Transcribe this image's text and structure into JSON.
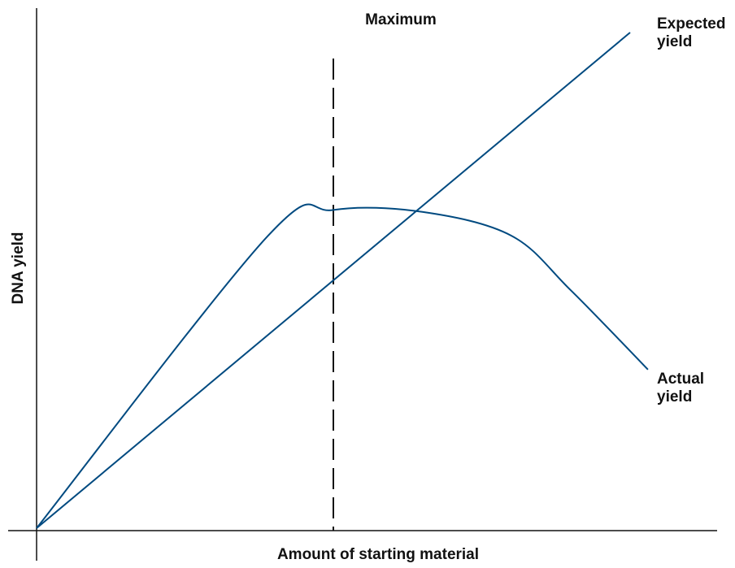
{
  "chart_data": {
    "type": "line",
    "title": "",
    "xlabel": "Amount of starting material",
    "ylabel": "DNA yield",
    "grid": false,
    "xlim": [
      0,
      10
    ],
    "ylim": [
      0,
      10
    ],
    "series": [
      {
        "name": "Expected\nyield",
        "color": "#004a80",
        "x": [
          0,
          10
        ],
        "y": [
          0,
          10
        ]
      },
      {
        "name": "Actual\nyield",
        "color": "#004a80",
        "x": [
          0,
          3.9,
          5.0,
          6.5,
          8.0,
          9.0,
          10.3
        ],
        "y": [
          0,
          5.9,
          6.42,
          6.38,
          5.9,
          4.8,
          3.2
        ]
      }
    ],
    "annotations": [
      {
        "text": "Maximum",
        "x": 5.0,
        "style": "dashed-vertical-line"
      }
    ]
  }
}
